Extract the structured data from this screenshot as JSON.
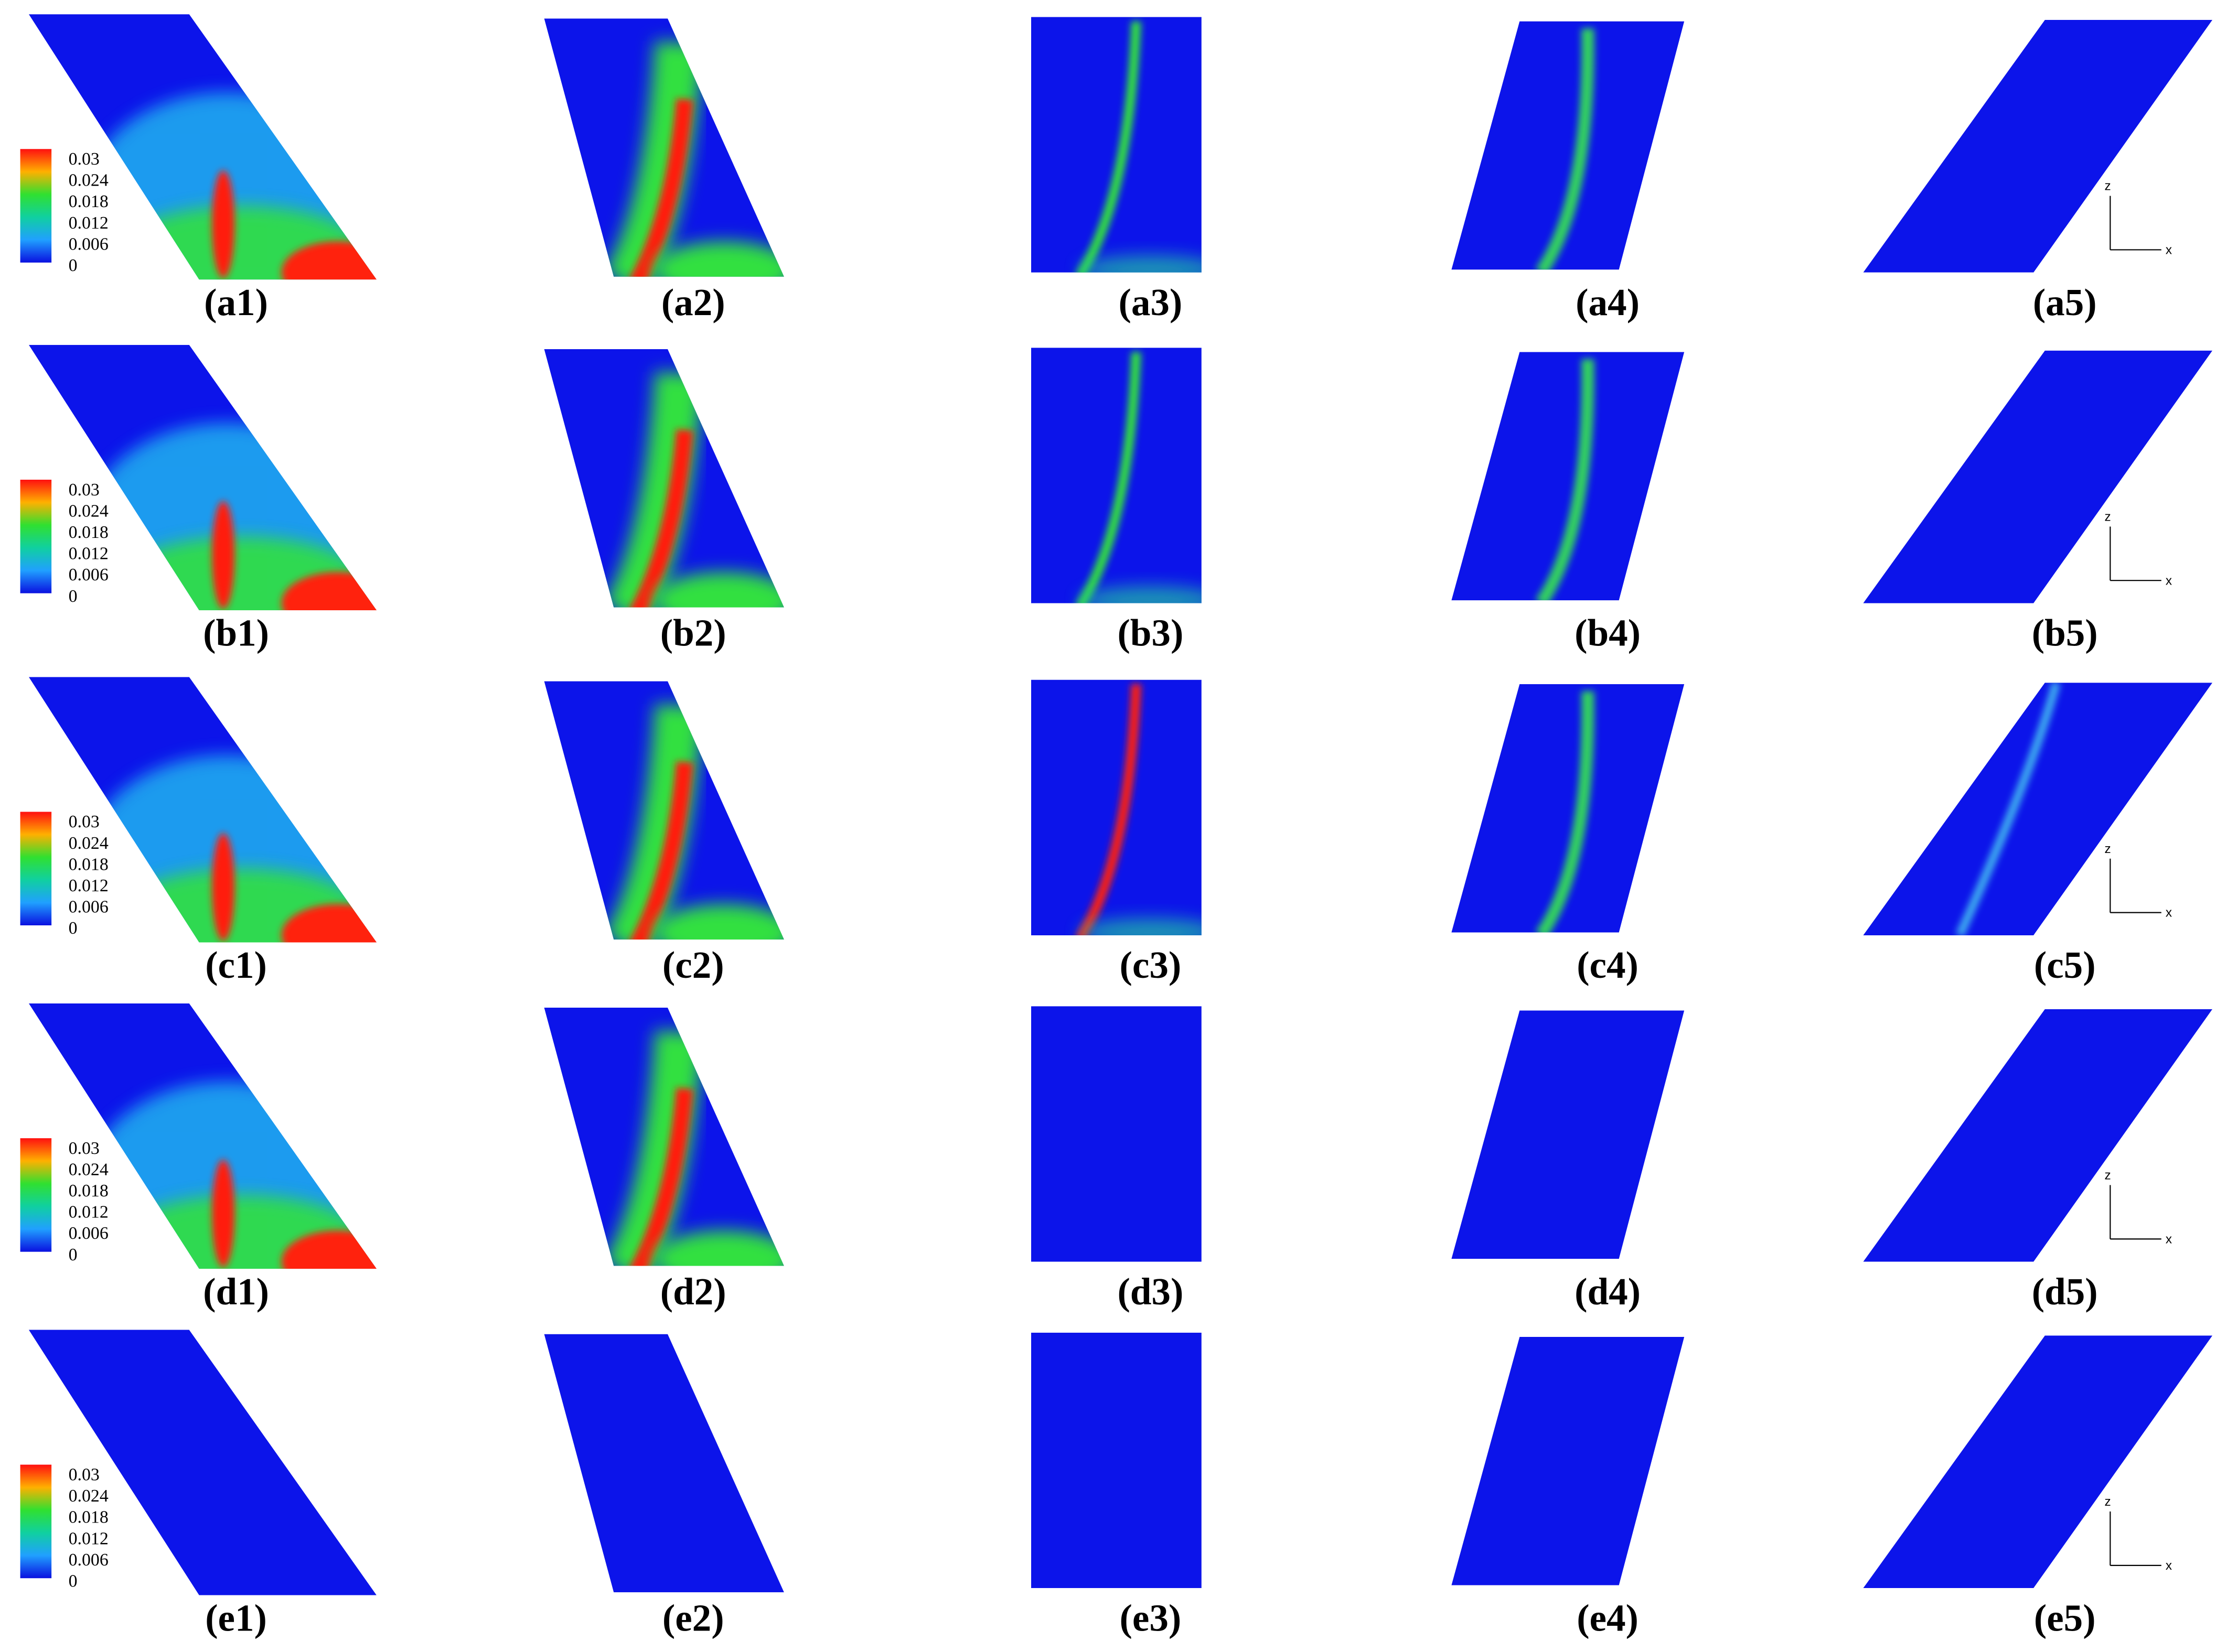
{
  "panels": [
    [
      "(a1)",
      "(a2)",
      "(a3)",
      "(a4)",
      "(a5)"
    ],
    [
      "(b1)",
      "(b2)",
      "(b3)",
      "(b4)",
      "(b5)"
    ],
    [
      "(c1)",
      "(c2)",
      "(c3)",
      "(c4)",
      "(c5)"
    ],
    [
      "(d1)",
      "(d2)",
      "(d3)",
      "(d4)",
      "(d5)"
    ],
    [
      "(e1)",
      "(e2)",
      "(e3)",
      "(e4)",
      "(e5)"
    ]
  ],
  "colorbar": {
    "ticks": [
      "0.03",
      "0.024",
      "0.018",
      "0.012",
      "0.006",
      "0"
    ]
  },
  "axes": {
    "vertical": "z",
    "horizontal": "x"
  }
}
